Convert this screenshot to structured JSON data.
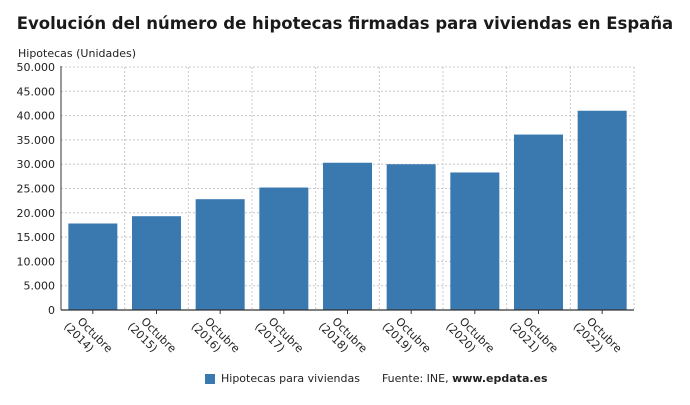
{
  "chart_data": {
    "type": "bar",
    "title": "Evolución del número de hipotecas firmadas para viviendas en España",
    "ylabel": "Hipotecas (Unidades)",
    "xlabel": "",
    "categories": [
      [
        "Octubre",
        "(2014)"
      ],
      [
        "Octubre",
        "(2015)"
      ],
      [
        "Octubre",
        "(2016)"
      ],
      [
        "Octubre",
        "(2017)"
      ],
      [
        "Octubre",
        "(2018)"
      ],
      [
        "Octubre",
        "(2019)"
      ],
      [
        "Octubre",
        "(2020)"
      ],
      [
        "Octubre",
        "(2021)"
      ],
      [
        "Octubre",
        "(2022)"
      ]
    ],
    "series": [
      {
        "name": "Hipotecas para viviendas",
        "color": "#3a78b0",
        "values": [
          17800,
          19300,
          22800,
          25200,
          30300,
          30000,
          28300,
          36100,
          41000
        ]
      }
    ],
    "ylim": [
      0,
      50000
    ],
    "yticks": [
      "0",
      "5.000",
      "10.000",
      "15.000",
      "20.000",
      "25.000",
      "30.000",
      "35.000",
      "40.000",
      "45.000",
      "50.000"
    ],
    "grid": true,
    "legend_position": "bottom"
  },
  "source": {
    "label": "Fuente: INE,",
    "site": "www.epdata.es"
  }
}
